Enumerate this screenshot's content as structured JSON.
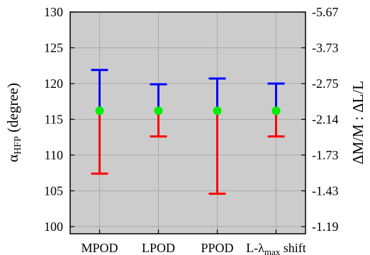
{
  "chart_data": {
    "type": "errorbar",
    "categories": [
      {
        "label": "MPOD",
        "label_sub": ""
      },
      {
        "label": "LPOD",
        "label_sub": ""
      },
      {
        "label": "PPOD",
        "label_sub": ""
      },
      {
        "label": "L-λ",
        "label_sub": "max",
        "label_tail": " shift"
      }
    ],
    "center": [
      116.2,
      116.2,
      116.2,
      116.2
    ],
    "upper": [
      121.9,
      119.9,
      120.7,
      120.0
    ],
    "lower": [
      107.4,
      112.6,
      104.6,
      112.6
    ],
    "ylabel": {
      "main": "α",
      "sub": "HFP",
      "tail": " (degree)"
    },
    "ylabel_right": "ΔM/M : ΔL/L",
    "ylim": [
      99,
      130
    ],
    "yticks": [
      100,
      105,
      110,
      115,
      120,
      125,
      130
    ],
    "yticks_right": [
      "-1.19",
      "-1.43",
      "-1.73",
      "-2.14",
      "-2.75",
      "-3.73",
      "-5.67"
    ],
    "grid": true,
    "colors": {
      "background": "#cccccc",
      "upper_whisker": "#0000ff",
      "lower_whisker": "#ff0000",
      "center_marker": "#00ee00",
      "grid": "#a9a9a9"
    }
  }
}
